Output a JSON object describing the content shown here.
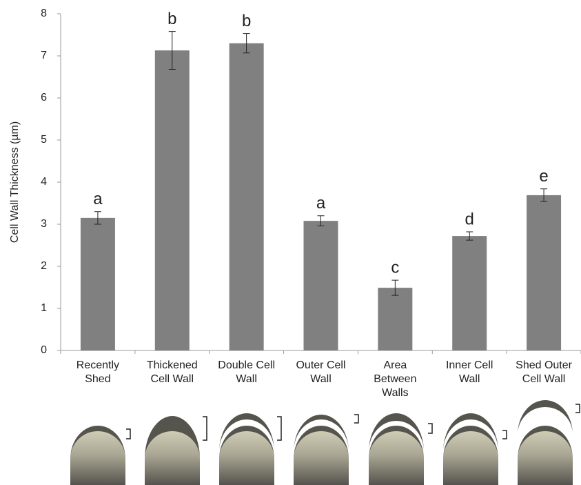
{
  "chart_data": {
    "type": "bar",
    "ylabel": "Cell Wall Thickness (µm)",
    "categories": [
      "Recently\nShed",
      "Thickened\nCell Wall",
      "Double Cell\nWall",
      "Outer Cell\nWall",
      "Area\nBetween\nWalls",
      "Inner Cell\nWall",
      "Shed Outer\nCell Wall"
    ],
    "values": [
      3.15,
      7.13,
      7.3,
      3.08,
      1.49,
      2.72,
      3.69
    ],
    "errors": [
      0.15,
      0.45,
      0.23,
      0.12,
      0.18,
      0.1,
      0.15
    ],
    "annotations": [
      "a",
      "b",
      "b",
      "a",
      "c",
      "d",
      "e"
    ],
    "color": "#808080",
    "ylim": [
      0,
      8
    ],
    "yticks": [
      0,
      1,
      2,
      3,
      4,
      5,
      6,
      7,
      8
    ]
  }
}
